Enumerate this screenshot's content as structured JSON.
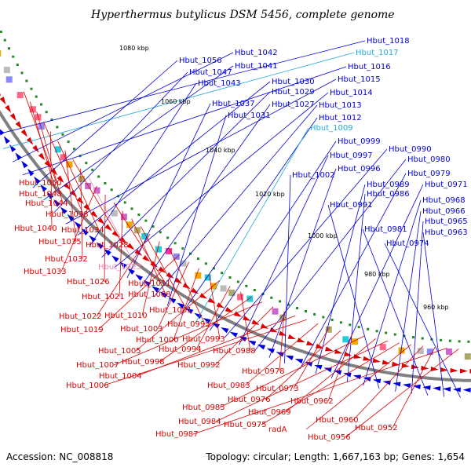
{
  "title": "Hyperthermus butylicus DSM 5456, complete genome",
  "footer": {
    "accession": "Accession: NC_008818",
    "stats": "Topology: circular; Length: 1,667,163 bp; Genes: 1,654"
  },
  "kbp_labels": [
    "1080 kbp",
    "1060 kbp",
    "1040 kbp",
    "1020 kbp",
    "1000 kbp",
    "980 kbp",
    "960 kbp"
  ],
  "colors": {
    "forward": "#0000dd",
    "forward_highlight": "#22aadd",
    "reverse": "#dd0000",
    "reverse_highlight": "#ee88bb",
    "backbone": "#808080"
  },
  "blue_labels": [
    {
      "text": "Hbut_1018",
      "color": "forward"
    },
    {
      "text": "Hbut_1017",
      "color": "forward_highlight"
    },
    {
      "text": "Hbut_1042",
      "color": "forward"
    },
    {
      "text": "Hbut_1016",
      "color": "forward"
    },
    {
      "text": "Hbut_1056",
      "color": "forward"
    },
    {
      "text": "Hbut_1041",
      "color": "forward"
    },
    {
      "text": "Hbut_1047",
      "color": "forward"
    },
    {
      "text": "Hbut_1015",
      "color": "forward"
    },
    {
      "text": "Hbut_1030",
      "color": "forward"
    },
    {
      "text": "Hbut_1043",
      "color": "forward"
    },
    {
      "text": "Hbut_1029",
      "color": "forward"
    },
    {
      "text": "Hbut_1014",
      "color": "forward"
    },
    {
      "text": "Hbut_1037",
      "color": "forward"
    },
    {
      "text": "Hbut_1027",
      "color": "forward"
    },
    {
      "text": "Hbut_1013",
      "color": "forward"
    },
    {
      "text": "Hbut_1031",
      "color": "forward"
    },
    {
      "text": "Hbut_1012",
      "color": "forward"
    },
    {
      "text": "Hbut_1009",
      "color": "forward_highlight"
    },
    {
      "text": "Hbut_0999",
      "color": "forward"
    },
    {
      "text": "Hbut_0990",
      "color": "forward"
    },
    {
      "text": "Hbut_0997",
      "color": "forward"
    },
    {
      "text": "Hbut_0980",
      "color": "forward"
    },
    {
      "text": "Hbut_0996",
      "color": "forward"
    },
    {
      "text": "Hbut_1002",
      "color": "forward"
    },
    {
      "text": "Hbut_0979",
      "color": "forward"
    },
    {
      "text": "Hbut_0989",
      "color": "forward"
    },
    {
      "text": "Hbut_0971",
      "color": "forward"
    },
    {
      "text": "Hbut_0986",
      "color": "forward"
    },
    {
      "text": "Hbut_0968",
      "color": "forward"
    },
    {
      "text": "Hbut_0991",
      "color": "forward"
    },
    {
      "text": "Hbut_0966",
      "color": "forward"
    },
    {
      "text": "Hbut_0965",
      "color": "forward"
    },
    {
      "text": "Hbut_0981",
      "color": "forward"
    },
    {
      "text": "Hbut_0963",
      "color": "forward"
    },
    {
      "text": "Hbut_0974",
      "color": "forward"
    }
  ],
  "red_labels": [
    {
      "text": "Hbut_1050",
      "color": "reverse"
    },
    {
      "text": "Hbut_1048",
      "color": "reverse"
    },
    {
      "text": "Hbut_1044",
      "color": "reverse"
    },
    {
      "text": "Hbut_1038",
      "color": "reverse"
    },
    {
      "text": "Hbut_1040",
      "color": "reverse"
    },
    {
      "text": "Hbut_1034",
      "color": "reverse"
    },
    {
      "text": "Hbut_1035",
      "color": "reverse"
    },
    {
      "text": "Hbut_1028",
      "color": "reverse"
    },
    {
      "text": "Hbut_1032",
      "color": "reverse"
    },
    {
      "text": "Hbut_1023",
      "color": "reverse_highlight"
    },
    {
      "text": "Hbut_1033",
      "color": "reverse"
    },
    {
      "text": "Hbut_1026",
      "color": "reverse"
    },
    {
      "text": "Hbut_1011",
      "color": "reverse"
    },
    {
      "text": "Hbut_1021",
      "color": "reverse"
    },
    {
      "text": "Hbut_1008",
      "color": "reverse"
    },
    {
      "text": "Hbut_1001",
      "color": "reverse"
    },
    {
      "text": "Hbut_1022",
      "color": "reverse"
    },
    {
      "text": "Hbut_1010",
      "color": "reverse"
    },
    {
      "text": "Hbut_0995",
      "color": "reverse"
    },
    {
      "text": "Hbut_1019",
      "color": "reverse"
    },
    {
      "text": "Hbut_1003",
      "color": "reverse"
    },
    {
      "text": "Hbut_1000",
      "color": "reverse"
    },
    {
      "text": "Hbut_0993",
      "color": "reverse"
    },
    {
      "text": "Hbut_1005",
      "color": "reverse"
    },
    {
      "text": "Hbut_0994",
      "color": "reverse"
    },
    {
      "text": "Hbut_0988",
      "color": "reverse"
    },
    {
      "text": "Hbut_0998",
      "color": "reverse"
    },
    {
      "text": "Hbut_1007",
      "color": "reverse"
    },
    {
      "text": "Hbut_0992",
      "color": "reverse"
    },
    {
      "text": "Hbut_0978",
      "color": "reverse"
    },
    {
      "text": "Hbut_1004",
      "color": "reverse"
    },
    {
      "text": "Hbut_1006",
      "color": "reverse"
    },
    {
      "text": "Hbut_0983",
      "color": "reverse"
    },
    {
      "text": "Hbut_0973",
      "color": "reverse"
    },
    {
      "text": "Hbut_0976",
      "color": "reverse"
    },
    {
      "text": "Hbut_0962",
      "color": "reverse"
    },
    {
      "text": "Hbut_0985",
      "color": "reverse"
    },
    {
      "text": "Hbut_0969",
      "color": "reverse"
    },
    {
      "text": "Hbut_0984",
      "color": "reverse"
    },
    {
      "text": "Hbut_0975",
      "color": "reverse"
    },
    {
      "text": "radA",
      "color": "reverse"
    },
    {
      "text": "Hbut_0960",
      "color": "reverse"
    },
    {
      "text": "Hbut_0952",
      "color": "reverse"
    },
    {
      "text": "Hbut_0987",
      "color": "reverse"
    },
    {
      "text": "Hbut_0956",
      "color": "reverse"
    }
  ]
}
